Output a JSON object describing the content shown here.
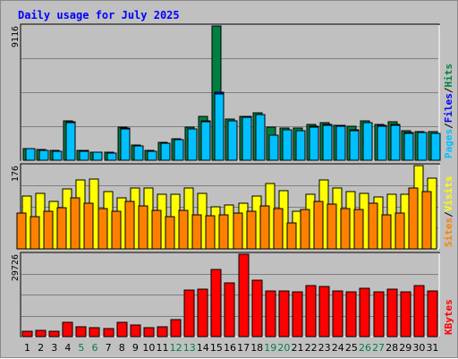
{
  "chart_data": {
    "type": "bar",
    "title": "Daily usage for July 2025",
    "categories": [
      "1",
      "2",
      "3",
      "4",
      "5",
      "6",
      "7",
      "8",
      "9",
      "10",
      "11",
      "12",
      "13",
      "14",
      "15",
      "16",
      "17",
      "18",
      "19",
      "20",
      "21",
      "22",
      "23",
      "24",
      "25",
      "26",
      "27",
      "28",
      "29",
      "30",
      "31"
    ],
    "weekend_days": [
      "5",
      "6",
      "12",
      "13",
      "19",
      "20",
      "26",
      "27"
    ],
    "panels": [
      {
        "id": "hits",
        "max_label": "9116",
        "ylim": [
          0,
          9116
        ],
        "series": [
          {
            "name": "Hits",
            "color": "#008040",
            "values": [
              800,
              700,
              650,
              2650,
              650,
              560,
              520,
              2250,
              1050,
              650,
              1200,
              1450,
              2250,
              2950,
              9116,
              2800,
              3000,
              3200,
              2250,
              2200,
              2200,
              2450,
              2550,
              2400,
              2300,
              2650,
              2450,
              2600,
              2000,
              1950,
              1950
            ]
          },
          {
            "name": "Files",
            "color": "#0000ff",
            "values": [
              780,
              680,
              630,
              2600,
              640,
              540,
              500,
              2200,
              1000,
              620,
              1150,
              1400,
              2150,
              2700,
              4600,
              2700,
              2950,
              3100,
              1700,
              2050,
              2000,
              2300,
              2450,
              2350,
              2050,
              2550,
              2350,
              2450,
              1900,
              1900,
              1850
            ]
          },
          {
            "name": "Pages",
            "color": "#00c0ff",
            "values": [
              760,
              660,
              600,
              2550,
              620,
              520,
              480,
              2150,
              980,
              600,
              1150,
              1380,
              2150,
              2600,
              4500,
              2650,
              2900,
              3100,
              1700,
              2050,
              2000,
              2250,
              2400,
              2300,
              2000,
              2550,
              2300,
              2400,
              1850,
              1900,
              1850
            ]
          }
        ]
      },
      {
        "id": "visits",
        "max_label": "176",
        "ylim": [
          0,
          176
        ],
        "series": [
          {
            "name": "Visits",
            "color": "#ffff00",
            "values": [
              112,
              118,
              100,
              127,
              145,
              148,
              122,
              108,
              129,
              129,
              115,
              115,
              129,
              118,
              89,
              92,
              96,
              112,
              139,
              123,
              80,
              116,
              145,
              129,
              122,
              118,
              110,
              116,
              116,
              176,
              150
            ]
          },
          {
            "name": "Sites",
            "color": "#ff8000",
            "values": [
              75,
              68,
              80,
              87,
              108,
              96,
              85,
              79,
              101,
              90,
              81,
              68,
              82,
              72,
              70,
              71,
              76,
              80,
              91,
              85,
              54,
              83,
              100,
              94,
              86,
              83,
              97,
              72,
              76,
              128,
              121
            ]
          }
        ]
      },
      {
        "id": "kbytes",
        "max_label": "29726",
        "ylim": [
          0,
          29726
        ],
        "series": [
          {
            "name": "KBytes",
            "color": "#ff0000",
            "values": [
              2000,
              2300,
              2100,
              5300,
              3700,
              3300,
              3000,
              5100,
              4200,
              3300,
              3400,
              6300,
              16700,
              17100,
              24300,
              19400,
              29726,
              20300,
              16400,
              16400,
              16300,
              18300,
              18100,
              16600,
              16100,
              17400,
              16000,
              17200,
              16300,
              18300,
              16400
            ]
          }
        ]
      }
    ],
    "legend": {
      "hits_panel": [
        "Pages",
        "/",
        "Files",
        "/",
        "Hits"
      ],
      "visits_panel": [
        "Sites",
        "/",
        "Visits"
      ],
      "kbytes_panel": [
        "KBytes"
      ]
    },
    "colors": {
      "title": "#0000ff",
      "weekday_label": "#000000",
      "weekend_label": "#00804a",
      "plot_bg": "#c0c0c0",
      "grid": "#808080"
    }
  }
}
